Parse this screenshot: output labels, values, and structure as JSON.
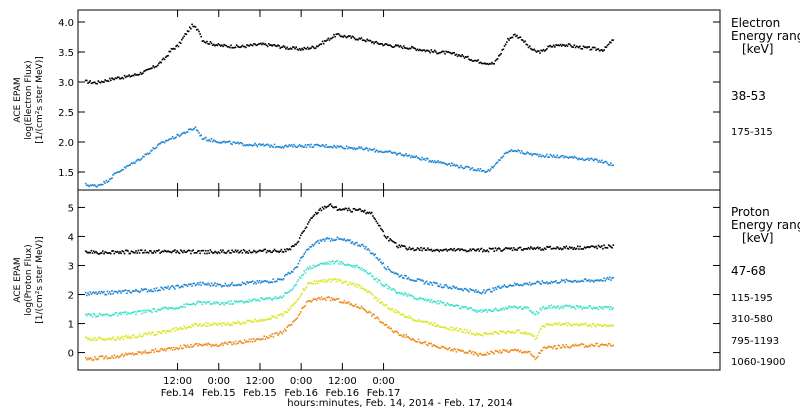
{
  "chart_data": [
    {
      "type": "scatter",
      "panel": "electron",
      "ylabel_lines": [
        "ACE EPAM",
        "log(Electron Flux)",
        "[1/(cm²s ster MeV)]"
      ],
      "ylim": [
        1.2,
        4.2
      ],
      "yticks": [
        1.5,
        2.0,
        2.5,
        3.0,
        3.5,
        4.0
      ],
      "ytick_labels": [
        "1.5",
        "2.0",
        "2.5",
        "3.0",
        "3.5",
        "4.0"
      ],
      "legend_title_lines": [
        "Electron",
        "Energy ranges",
        "[keV]"
      ],
      "series": [
        {
          "name": "38-53",
          "color": "#000000",
          "points": [
            [
              -15,
              3.02
            ],
            [
              -12,
              3.0
            ],
            [
              -9,
              3.04
            ],
            [
              -6,
              3.08
            ],
            [
              -3,
              3.1
            ],
            [
              0,
              3.14
            ],
            [
              3,
              3.2
            ],
            [
              6,
              3.3
            ],
            [
              8,
              3.4
            ],
            [
              10,
              3.55
            ],
            [
              12,
              3.62
            ],
            [
              14,
              3.8
            ],
            [
              16,
              3.95
            ],
            [
              18,
              3.88
            ],
            [
              19,
              3.72
            ],
            [
              20,
              3.68
            ],
            [
              24,
              3.62
            ],
            [
              30,
              3.6
            ],
            [
              36,
              3.64
            ],
            [
              40,
              3.62
            ],
            [
              44,
              3.58
            ],
            [
              48,
              3.56
            ],
            [
              52,
              3.6
            ],
            [
              55,
              3.7
            ],
            [
              58,
              3.8
            ],
            [
              62,
              3.76
            ],
            [
              66,
              3.72
            ],
            [
              70,
              3.66
            ],
            [
              74,
              3.62
            ],
            [
              80,
              3.58
            ],
            [
              86,
              3.52
            ],
            [
              90,
              3.5
            ],
            [
              94,
              3.46
            ],
            [
              96,
              3.42
            ],
            [
              98,
              3.38
            ],
            [
              100,
              3.35
            ],
            [
              102,
              3.33
            ],
            [
              104,
              3.32
            ],
            [
              106,
              3.5
            ],
            [
              108,
              3.72
            ],
            [
              110,
              3.8
            ],
            [
              112,
              3.74
            ],
            [
              114,
              3.6
            ],
            [
              116,
              3.52
            ],
            [
              118,
              3.52
            ],
            [
              120,
              3.6
            ],
            [
              124,
              3.64
            ],
            [
              128,
              3.6
            ],
            [
              132,
              3.57
            ],
            [
              136,
              3.55
            ],
            [
              138,
              3.68
            ],
            [
              139,
              3.72
            ]
          ]
        },
        {
          "name": "175-315",
          "color": "#1f86d4",
          "points": [
            [
              -15,
              1.3
            ],
            [
              -12,
              1.28
            ],
            [
              -9,
              1.35
            ],
            [
              -6,
              1.5
            ],
            [
              -3,
              1.6
            ],
            [
              0,
              1.7
            ],
            [
              3,
              1.82
            ],
            [
              6,
              1.95
            ],
            [
              9,
              2.05
            ],
            [
              12,
              2.12
            ],
            [
              15,
              2.2
            ],
            [
              17,
              2.25
            ],
            [
              19,
              2.08
            ],
            [
              21,
              2.05
            ],
            [
              24,
              2.02
            ],
            [
              30,
              1.98
            ],
            [
              36,
              1.96
            ],
            [
              42,
              1.94
            ],
            [
              48,
              1.95
            ],
            [
              54,
              1.95
            ],
            [
              60,
              1.93
            ],
            [
              66,
              1.9
            ],
            [
              72,
              1.85
            ],
            [
              78,
              1.8
            ],
            [
              84,
              1.72
            ],
            [
              90,
              1.66
            ],
            [
              96,
              1.58
            ],
            [
              100,
              1.55
            ],
            [
              102,
              1.52
            ],
            [
              104,
              1.6
            ],
            [
              106,
              1.75
            ],
            [
              108,
              1.85
            ],
            [
              110,
              1.88
            ],
            [
              112,
              1.84
            ],
            [
              116,
              1.8
            ],
            [
              120,
              1.78
            ],
            [
              126,
              1.76
            ],
            [
              132,
              1.72
            ],
            [
              136,
              1.68
            ],
            [
              139,
              1.62
            ]
          ]
        }
      ]
    },
    {
      "type": "scatter",
      "panel": "proton",
      "ylabel_lines": [
        "ACE EPAM",
        "log(Proton Flux)",
        "[1/(cm²s ster MeV)]"
      ],
      "ylim": [
        -0.6,
        5.6
      ],
      "yticks": [
        0,
        1,
        2,
        3,
        4,
        5
      ],
      "ytick_labels": [
        "0",
        "1",
        "2",
        "3",
        "4",
        "5"
      ],
      "legend_title_lines": [
        "Proton",
        "Energy ranges",
        "[keV]"
      ],
      "series": [
        {
          "name": "47-68",
          "color": "#000000",
          "points": [
            [
              -15,
              3.48
            ],
            [
              0,
              3.5
            ],
            [
              12,
              3.5
            ],
            [
              24,
              3.5
            ],
            [
              36,
              3.52
            ],
            [
              44,
              3.55
            ],
            [
              46,
              3.7
            ],
            [
              48,
              4.1
            ],
            [
              50,
              4.5
            ],
            [
              52,
              4.8
            ],
            [
              54,
              5.0
            ],
            [
              56,
              5.1
            ],
            [
              58,
              5.0
            ],
            [
              60,
              4.95
            ],
            [
              64,
              4.92
            ],
            [
              68,
              4.85
            ],
            [
              70,
              4.5
            ],
            [
              72,
              4.1
            ],
            [
              74,
              3.85
            ],
            [
              76,
              3.7
            ],
            [
              80,
              3.6
            ],
            [
              90,
              3.55
            ],
            [
              100,
              3.55
            ],
            [
              110,
              3.6
            ],
            [
              120,
              3.62
            ],
            [
              130,
              3.64
            ],
            [
              139,
              3.68
            ]
          ]
        },
        {
          "name": "115-195",
          "color": "#1f86d4",
          "points": [
            [
              -15,
              2.05
            ],
            [
              -6,
              2.1
            ],
            [
              0,
              2.15
            ],
            [
              6,
              2.2
            ],
            [
              12,
              2.3
            ],
            [
              18,
              2.4
            ],
            [
              24,
              2.35
            ],
            [
              30,
              2.4
            ],
            [
              36,
              2.45
            ],
            [
              42,
              2.55
            ],
            [
              46,
              2.9
            ],
            [
              48,
              3.3
            ],
            [
              50,
              3.6
            ],
            [
              52,
              3.8
            ],
            [
              54,
              3.9
            ],
            [
              58,
              3.95
            ],
            [
              62,
              3.85
            ],
            [
              66,
              3.7
            ],
            [
              70,
              3.3
            ],
            [
              72,
              3.0
            ],
            [
              76,
              2.7
            ],
            [
              82,
              2.5
            ],
            [
              90,
              2.3
            ],
            [
              96,
              2.2
            ],
            [
              100,
              2.1
            ],
            [
              104,
              2.2
            ],
            [
              108,
              2.35
            ],
            [
              114,
              2.4
            ],
            [
              120,
              2.45
            ],
            [
              126,
              2.5
            ],
            [
              132,
              2.5
            ],
            [
              139,
              2.58
            ]
          ]
        },
        {
          "name": "310-580",
          "color": "#3fe0d0",
          "points": [
            [
              -15,
              1.3
            ],
            [
              -6,
              1.35
            ],
            [
              0,
              1.4
            ],
            [
              6,
              1.5
            ],
            [
              12,
              1.6
            ],
            [
              18,
              1.75
            ],
            [
              24,
              1.72
            ],
            [
              30,
              1.78
            ],
            [
              36,
              1.85
            ],
            [
              42,
              1.95
            ],
            [
              46,
              2.3
            ],
            [
              48,
              2.7
            ],
            [
              50,
              2.95
            ],
            [
              54,
              3.1
            ],
            [
              58,
              3.15
            ],
            [
              62,
              3.05
            ],
            [
              66,
              2.9
            ],
            [
              70,
              2.5
            ],
            [
              74,
              2.2
            ],
            [
              80,
              1.95
            ],
            [
              88,
              1.75
            ],
            [
              96,
              1.55
            ],
            [
              100,
              1.45
            ],
            [
              104,
              1.5
            ],
            [
              110,
              1.6
            ],
            [
              114,
              1.55
            ],
            [
              116,
              1.35
            ],
            [
              118,
              1.55
            ],
            [
              120,
              1.6
            ],
            [
              126,
              1.6
            ],
            [
              132,
              1.58
            ],
            [
              139,
              1.55
            ]
          ]
        },
        {
          "name": "795-1193",
          "color": "#d8e826",
          "points": [
            [
              -15,
              0.5
            ],
            [
              -6,
              0.52
            ],
            [
              0,
              0.6
            ],
            [
              6,
              0.7
            ],
            [
              12,
              0.85
            ],
            [
              18,
              1.0
            ],
            [
              24,
              0.98
            ],
            [
              30,
              1.05
            ],
            [
              36,
              1.15
            ],
            [
              42,
              1.3
            ],
            [
              46,
              1.7
            ],
            [
              48,
              2.1
            ],
            [
              50,
              2.4
            ],
            [
              54,
              2.5
            ],
            [
              58,
              2.52
            ],
            [
              62,
              2.4
            ],
            [
              66,
              2.25
            ],
            [
              70,
              1.85
            ],
            [
              74,
              1.5
            ],
            [
              80,
              1.2
            ],
            [
              88,
              0.95
            ],
            [
              96,
              0.75
            ],
            [
              100,
              0.65
            ],
            [
              104,
              0.7
            ],
            [
              110,
              0.75
            ],
            [
              114,
              0.72
            ],
            [
              116,
              0.5
            ],
            [
              118,
              0.95
            ],
            [
              120,
              1.0
            ],
            [
              126,
              1.0
            ],
            [
              132,
              0.98
            ],
            [
              139,
              0.95
            ]
          ]
        },
        {
          "name": "1060-1900",
          "color": "#f08a1c",
          "points": [
            [
              -15,
              -0.2
            ],
            [
              -6,
              -0.1
            ],
            [
              0,
              0.0
            ],
            [
              6,
              0.1
            ],
            [
              12,
              0.2
            ],
            [
              18,
              0.3
            ],
            [
              24,
              0.3
            ],
            [
              30,
              0.38
            ],
            [
              36,
              0.5
            ],
            [
              42,
              0.7
            ],
            [
              46,
              1.1
            ],
            [
              48,
              1.5
            ],
            [
              50,
              1.8
            ],
            [
              54,
              1.9
            ],
            [
              58,
              1.85
            ],
            [
              62,
              1.7
            ],
            [
              66,
              1.55
            ],
            [
              70,
              1.2
            ],
            [
              74,
              0.8
            ],
            [
              80,
              0.5
            ],
            [
              88,
              0.2
            ],
            [
              96,
              0.05
            ],
            [
              100,
              -0.05
            ],
            [
              104,
              0.05
            ],
            [
              110,
              0.1
            ],
            [
              114,
              0.05
            ],
            [
              116,
              -0.2
            ],
            [
              118,
              0.15
            ],
            [
              120,
              0.2
            ],
            [
              126,
              0.25
            ],
            [
              132,
              0.28
            ],
            [
              139,
              0.3
            ]
          ]
        }
      ]
    }
  ],
  "x_axis": {
    "title": "hours:minutes, Feb. 14, 2014 - Feb. 17, 2014",
    "xlim": [
      -17,
      170
    ],
    "ticks": [
      {
        "x": 12,
        "time": "12:00",
        "date": "Feb.14"
      },
      {
        "x": 24,
        "time": "0:00",
        "date": "Feb.15"
      },
      {
        "x": 36,
        "time": "12:00",
        "date": "Feb.15"
      },
      {
        "x": 48,
        "time": "0:00",
        "date": "Feb.16"
      },
      {
        "x": 60,
        "time": "12:00",
        "date": "Feb.16"
      },
      {
        "x": 72,
        "time": "0:00",
        "date": "Feb.17"
      }
    ]
  }
}
